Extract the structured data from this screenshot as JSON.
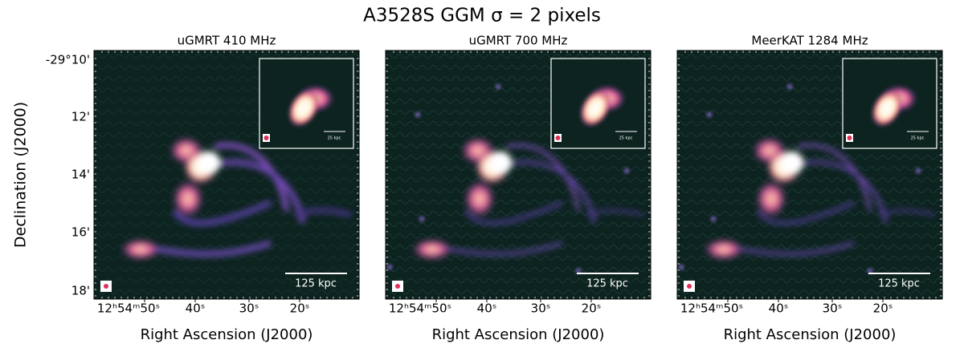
{
  "title": "A3528S GGM σ = 2 pixels",
  "y_axis_label": "Declination (J2000)",
  "y_ticks": [
    "-29°10'",
    "12'",
    "14'",
    "16'",
    "18'"
  ],
  "panels": [
    {
      "title": "uGMRT 410 MHz",
      "x_axis_label": "Right Ascension (J2000)",
      "x_ticks": [
        "12ʰ54ᵐ50ˢ",
        "40ˢ",
        "30ˢ",
        "20ˢ"
      ],
      "scale_bar": "125 kpc",
      "inset_scale_bar": "25 kpc"
    },
    {
      "title": "uGMRT 700 MHz",
      "x_axis_label": "Right Ascension (J2000)",
      "x_ticks": [
        "12ʰ54ᵐ50ˢ",
        "40ˢ",
        "30ˢ",
        "20ˢ"
      ],
      "scale_bar": "125 kpc",
      "inset_scale_bar": "25 kpc"
    },
    {
      "title": "MeerKAT 1284 MHz",
      "x_axis_label": "Right Ascension (J2000)",
      "x_ticks": [
        "12ʰ54ᵐ50ˢ",
        "40ˢ",
        "30ˢ",
        "20ˢ"
      ],
      "scale_bar": "125 kpc",
      "inset_scale_bar": "25 kpc"
    }
  ]
}
